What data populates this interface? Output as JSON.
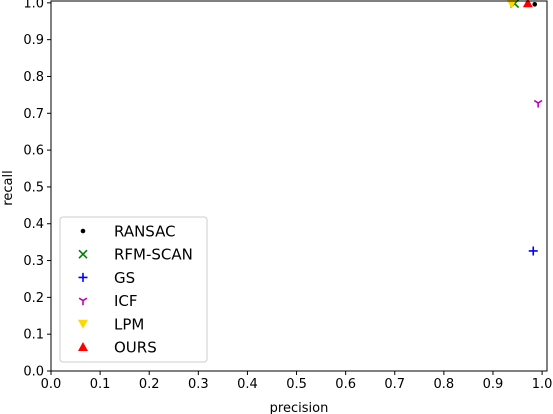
{
  "chart_data": {
    "type": "scatter",
    "xlabel": "precision",
    "ylabel": "recall",
    "xlim": [
      0.0,
      1.01
    ],
    "ylim": [
      0.0,
      1.005
    ],
    "xticks": [
      "0.0",
      "0.1",
      "0.2",
      "0.3",
      "0.4",
      "0.5",
      "0.6",
      "0.7",
      "0.8",
      "0.9",
      "1.0"
    ],
    "yticks": [
      "0.0",
      "0.1",
      "0.2",
      "0.3",
      "0.4",
      "0.5",
      "0.6",
      "0.7",
      "0.8",
      "0.9",
      "1.0"
    ],
    "grid": false,
    "legend_position": "lower-left",
    "series": [
      {
        "name": "RANSAC",
        "marker": "point",
        "color": "#000000",
        "x": [
          0.985
        ],
        "y": [
          0.996
        ]
      },
      {
        "name": "RFM-SCAN",
        "marker": "x",
        "color": "#008000",
        "x": [
          0.944
        ],
        "y": [
          0.998
        ]
      },
      {
        "name": "GS",
        "marker": "plus",
        "color": "#0000ff",
        "x": [
          0.982
        ],
        "y": [
          0.326
        ]
      },
      {
        "name": "ICF",
        "marker": "tri-down",
        "color": "#bf00bf",
        "x": [
          0.992
        ],
        "y": [
          0.728
        ]
      },
      {
        "name": "LPM",
        "marker": "triangle-down",
        "color": "#ffd700",
        "x": [
          0.938
        ],
        "y": [
          0.998
        ]
      },
      {
        "name": "OURS",
        "marker": "triangle-up",
        "color": "#ff0000",
        "x": [
          0.971
        ],
        "y": [
          0.999
        ]
      }
    ]
  }
}
